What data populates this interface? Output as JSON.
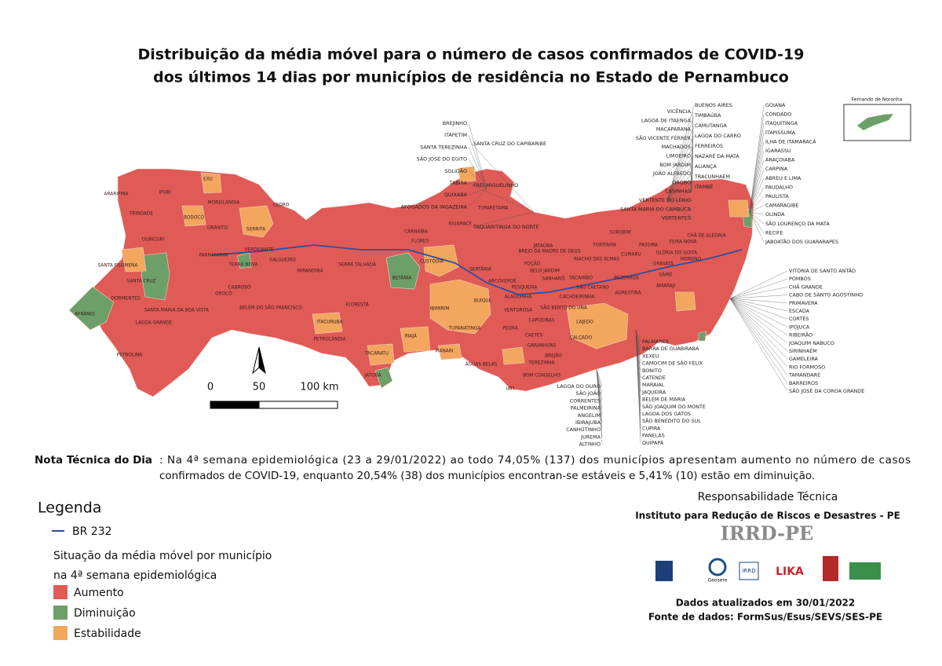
{
  "title": [
    "Distribuição da média móvel para o número de casos confirmados de COVID-19",
    "dos últimos 14 dias por municípios de residência no Estado de Pernambuco"
  ],
  "inset_title": "Fernando de Noronha",
  "scale_labels": [
    "0",
    "50",
    "100 km"
  ],
  "callouts": {
    "top_west": [
      "BREJINHO",
      "ITAPETIM",
      "SANTA TEREZINHA",
      "SÃO JOSÉ DO EGITO",
      "SOLIDÃO",
      "TABIRA",
      "QUIXABA",
      "AFOGADOS DA INGAZEIRA"
    ],
    "top_mid": [
      "SANTA CRUZ DO CAPIBARIBE",
      "FREI MIGUELINHO",
      "TAQUARITINGA DO NORTE"
    ],
    "north_left": [
      "VICÊNCIA",
      "LAGOA DE ITAENGA",
      "MACAPARANA",
      "SÃO VICENTE FÉRRER",
      "MACHADOS",
      "LIMOEIRO",
      "BOM JARDIM",
      "JOÃO ALFREDO",
      "OROBÓ",
      "CASINHAS",
      "VERTENTE DO LÉRIO",
      "SANTA MARIA DO CAMBUCÁ",
      "VERTENTES"
    ],
    "north_mid": [
      "BUENOS AIRES",
      "TIMBAÚBA",
      "CAMUTANGA",
      "LAGOA DO CARRO",
      "FERREIROS",
      "NAZARÉ DA MATA",
      "ALIANÇA",
      "TRACUNHAÉM",
      "ITAMBÉ"
    ],
    "east": [
      "GOIANA",
      "CONDADO",
      "ITAQUITINGA",
      "ITAPISSUMA",
      "ILHA DE ITAMARACÁ",
      "IGARASSU",
      "ARAÇOIABA",
      "CARPINA",
      "ABREU E LIMA",
      "PAUDALHO",
      "PAULISTA",
      "CAMARAGIBE",
      "OLINDA",
      "SÃO LOURENÇO DA MATA",
      "RECIFE",
      "JABOATÃO DOS GUARARAPES"
    ],
    "south_east": [
      "VITÓRIA DE SANTO ANTÃO",
      "POMBOS",
      "CHÃ GRANDE",
      "CABO DE SANTO AGOSTINHO",
      "PRIMAVERA",
      "ESCADA",
      "CORTÊS",
      "IPOJUCA",
      "RIBEIRÃO",
      "JOAQUIM NABUCO",
      "SIRINHAÉM",
      "GAMELEIRA",
      "RIO FORMOSO",
      "TAMANDARÉ",
      "BARREIROS",
      "SÃO JOSÉ DA COROA GRANDE"
    ],
    "south_mid": [
      "PALMARES",
      "BARRA DE GUABIRABA",
      "XEXÉU",
      "CAMOCIM DE SÃO FÉLIX",
      "BONITO",
      "CATENDE",
      "MARAIAL",
      "JAQUEIRA",
      "BELÉM DE MARIA",
      "SÃO JOAQUIM DO MONTE",
      "LAGOA DOS GATOS",
      "SÃO BENEDITO DO SUL",
      "CUPIRA",
      "PANELAS",
      "QUIPAPÁ"
    ],
    "south_left": [
      "LAGOA DO OURO",
      "SÃO JOÃO",
      "CORRENTES",
      "PALMEIRINA",
      "ANGELIM",
      "IBIRAJUBA",
      "CANHOTINHO",
      "JUREMA",
      "ALTINHO"
    ]
  },
  "interior": [
    "ARARIPINA",
    "EXU",
    "BODOCÓ",
    "MOREILÂNDIA",
    "CEDRO",
    "TRINDADE",
    "OURICURI",
    "IPUBI",
    "GRANITO",
    "SERRITA",
    "SALGUEIRO",
    "VERDEJANTE",
    "PARNAMIRIM",
    "TERRA NOVA",
    "SANTA FILOMENA",
    "SANTA CRUZ",
    "DORMENTES",
    "AFRÂNIO",
    "SANTA MARIA DA BOA VISTA",
    "LAGOA GRANDE",
    "PETROLINA",
    "CABROBÓ",
    "OROCÓ",
    "BELÉM DO SÃO FRANCISCO",
    "FLORESTA",
    "ITACURUBA",
    "PETROLÂNDIA",
    "TACARATU",
    "JATOBÁ",
    "SERRA TALHADA",
    "MIRANDIBA",
    "CARNAÍBA",
    "FLORES",
    "CUSTÓDIA",
    "BETÂNIA",
    "IBIMIRIM",
    "INAJÁ",
    "TUPANATINGA",
    "MANARI",
    "BUÍQUE",
    "SERTÂNIA",
    "ARCOVERDE",
    "PEDRA",
    "ÁGUAS BELAS",
    "IATI",
    "IGUARACY",
    "TUPARETAMA",
    "BREJO DA MADRE DE DEUS",
    "BELO JARDIM",
    "SÃO BENTO DO UNA",
    "CACHOEIRINHA",
    "GARANHUNS",
    "CAETÉS",
    "CAPOEIRAS",
    "LAJEDO",
    "CALÇADO",
    "BREJÃO",
    "TEREZINHA",
    "BOM CONSELHO",
    "SURUBIM",
    "PASSIRA",
    "GLÓRIA DO GOITÁ",
    "FEIRA NOVA",
    "GRAVATÁ",
    "BEZERROS",
    "AGRESTINA",
    "SAIRÉ",
    "POÇÃO",
    "JATAÚBA",
    "TORITAMA",
    "PESQUEIRA",
    "TACAIMBÓ",
    "CUMARU",
    "CHÃ DE ALEGRIA",
    "MORENO",
    "AMARAJI",
    "RIACHO DAS ALMAS",
    "SANHARÓ",
    "SÃO CAETANO",
    "ALAGOINHA",
    "VENTUROSA"
  ],
  "note": {
    "label": "Nota Técnica do Dia",
    "line1": ": Na 4ª semana epidemiológica (23 a 29/01/2022) ao todo 74,05% (137) dos municípios apresentam aumento no número de casos",
    "line2": "confirmados de COVID-19, enquanto 20,54% (38) dos municípios encontran-se estáveis e 5,41% (10) estão em diminuição."
  },
  "legend": {
    "title": "Legenda",
    "road": "BR 232",
    "subtitle": [
      "Situação da média móvel por município",
      "na 4ª semana epidemiológica"
    ],
    "items": [
      {
        "name": "Aumento",
        "color": "#e05a56"
      },
      {
        "name": "Diminuição",
        "color": "#6d9f68"
      },
      {
        "name": "Estabilidade",
        "color": "#f3a65e"
      }
    ]
  },
  "credits": {
    "heading": "Responsabilidade Técnica",
    "institute": "Instituto para Redução de Riscos e Desastres - PE",
    "brand": "IRRD-PE",
    "logos": [
      "Geosere",
      "IRRD",
      "LIKA"
    ],
    "updated": "Dados atualizados em 30/01/2022",
    "source": "Fonte de dados: FormSus/Esus/SEVS/SES-PE"
  }
}
